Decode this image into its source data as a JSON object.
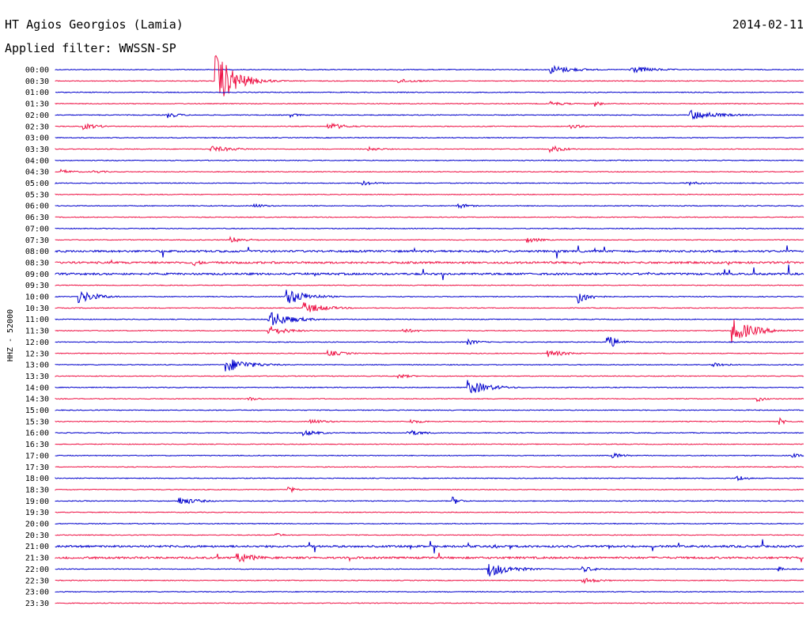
{
  "header": {
    "station": "HT Agios Georgios (Lamia)",
    "date": "2014-02-11",
    "filter": "Applied filter: WWSSN-SP"
  },
  "side_label": "HHZ - 52000",
  "chart_data": {
    "type": "line",
    "title": "HT Agios Georgios (Lamia)",
    "subtitle": "Applied filter: WWSSN-SP",
    "ylabel": "HHZ - 52000",
    "xlabel": "",
    "grid": false,
    "colors": [
      "#0000cc",
      "#ee1144"
    ],
    "row_labels": [
      "00:00",
      "00:30",
      "01:00",
      "01:30",
      "02:00",
      "02:30",
      "03:00",
      "03:30",
      "04:00",
      "04:30",
      "05:00",
      "05:30",
      "06:00",
      "06:30",
      "07:00",
      "07:30",
      "08:00",
      "08:30",
      "09:00",
      "09:30",
      "10:00",
      "10:30",
      "11:00",
      "11:30",
      "12:00",
      "12:30",
      "13:00",
      "13:30",
      "14:00",
      "14:30",
      "15:00",
      "15:30",
      "16:00",
      "16:30",
      "17:00",
      "17:30",
      "18:00",
      "18:30",
      "19:00",
      "19:30",
      "20:00",
      "20:30",
      "21:00",
      "21:30",
      "22:00",
      "22:30",
      "23:00",
      "23:30"
    ],
    "row_minutes": 30,
    "events": [
      {
        "row": 0,
        "minute": 19.8,
        "amp": 6,
        "dur": 1.6
      },
      {
        "row": 0,
        "minute": 23.0,
        "amp": 5,
        "dur": 1.6
      },
      {
        "row": 1,
        "minute": 6.4,
        "amp": 38,
        "dur": 1.2
      },
      {
        "row": 1,
        "minute": 13.7,
        "amp": 3,
        "dur": 1.5
      },
      {
        "row": 3,
        "minute": 19.8,
        "amp": 3,
        "dur": 1.2
      },
      {
        "row": 3,
        "minute": 21.6,
        "amp": 5,
        "dur": 0.4
      },
      {
        "row": 4,
        "minute": 4.5,
        "amp": 4,
        "dur": 0.8
      },
      {
        "row": 4,
        "minute": 9.4,
        "amp": 3,
        "dur": 0.6
      },
      {
        "row": 4,
        "minute": 25.4,
        "amp": 7,
        "dur": 1.8
      },
      {
        "row": 5,
        "minute": 1.1,
        "amp": 4,
        "dur": 1.2
      },
      {
        "row": 5,
        "minute": 10.9,
        "amp": 5,
        "dur": 1.2
      },
      {
        "row": 5,
        "minute": 20.6,
        "amp": 3,
        "dur": 1.0
      },
      {
        "row": 7,
        "minute": 6.2,
        "amp": 4,
        "dur": 1.8
      },
      {
        "row": 7,
        "minute": 12.5,
        "amp": 3,
        "dur": 1.0
      },
      {
        "row": 7,
        "minute": 19.8,
        "amp": 5,
        "dur": 1.0
      },
      {
        "row": 9,
        "minute": 0.2,
        "amp": 3,
        "dur": 1.0
      },
      {
        "row": 9,
        "minute": 1.5,
        "amp": 2,
        "dur": 1.2
      },
      {
        "row": 10,
        "minute": 12.3,
        "amp": 3,
        "dur": 1.0
      },
      {
        "row": 10,
        "minute": 25.3,
        "amp": 3,
        "dur": 1.0
      },
      {
        "row": 12,
        "minute": 7.9,
        "amp": 3,
        "dur": 1.0
      },
      {
        "row": 12,
        "minute": 16.1,
        "amp": 4,
        "dur": 0.8
      },
      {
        "row": 15,
        "minute": 7.0,
        "amp": 4,
        "dur": 1.2
      },
      {
        "row": 15,
        "minute": 18.9,
        "amp": 4,
        "dur": 0.9
      },
      {
        "row": 17,
        "minute": 5.5,
        "amp": 5,
        "dur": 0.6
      },
      {
        "row": 20,
        "minute": 0.9,
        "amp": 9,
        "dur": 1.2
      },
      {
        "row": 20,
        "minute": 9.2,
        "amp": 12,
        "dur": 1.3
      },
      {
        "row": 20,
        "minute": 20.9,
        "amp": 10,
        "dur": 0.8
      },
      {
        "row": 21,
        "minute": 9.9,
        "amp": 8,
        "dur": 1.4
      },
      {
        "row": 22,
        "minute": 8.5,
        "amp": 12,
        "dur": 1.4
      },
      {
        "row": 23,
        "minute": 8.5,
        "amp": 7,
        "dur": 1.2
      },
      {
        "row": 23,
        "minute": 13.9,
        "amp": 3,
        "dur": 1.2
      },
      {
        "row": 23,
        "minute": 27.1,
        "amp": 16,
        "dur": 1.4
      },
      {
        "row": 24,
        "minute": 16.5,
        "amp": 4,
        "dur": 0.8
      },
      {
        "row": 24,
        "minute": 22.1,
        "amp": 12,
        "dur": 0.6
      },
      {
        "row": 25,
        "minute": 10.9,
        "amp": 4,
        "dur": 1.2
      },
      {
        "row": 25,
        "minute": 19.7,
        "amp": 5,
        "dur": 1.2
      },
      {
        "row": 26,
        "minute": 6.8,
        "amp": 10,
        "dur": 1.5
      },
      {
        "row": 26,
        "minute": 26.3,
        "amp": 4,
        "dur": 1.0
      },
      {
        "row": 27,
        "minute": 13.7,
        "amp": 3,
        "dur": 1.0
      },
      {
        "row": 28,
        "minute": 16.5,
        "amp": 10,
        "dur": 1.4
      },
      {
        "row": 29,
        "minute": 7.7,
        "amp": 3,
        "dur": 0.8
      },
      {
        "row": 29,
        "minute": 28.1,
        "amp": 5,
        "dur": 0.5
      },
      {
        "row": 31,
        "minute": 10.2,
        "amp": 3,
        "dur": 1.4
      },
      {
        "row": 31,
        "minute": 14.2,
        "amp": 3,
        "dur": 1.0
      },
      {
        "row": 31,
        "minute": 29.0,
        "amp": 5,
        "dur": 0.5
      },
      {
        "row": 32,
        "minute": 9.9,
        "amp": 4,
        "dur": 1.2
      },
      {
        "row": 32,
        "minute": 14.1,
        "amp": 4,
        "dur": 1.2
      },
      {
        "row": 34,
        "minute": 22.3,
        "amp": 4,
        "dur": 0.8
      },
      {
        "row": 34,
        "minute": 29.5,
        "amp": 3,
        "dur": 0.8
      },
      {
        "row": 36,
        "minute": 27.3,
        "amp": 5,
        "dur": 0.6
      },
      {
        "row": 37,
        "minute": 9.3,
        "amp": 5,
        "dur": 0.5
      },
      {
        "row": 38,
        "minute": 4.9,
        "amp": 6,
        "dur": 1.2
      },
      {
        "row": 38,
        "minute": 15.9,
        "amp": 6,
        "dur": 0.5
      },
      {
        "row": 41,
        "minute": 8.8,
        "amp": 3,
        "dur": 0.6
      },
      {
        "row": 42,
        "minute": 17.5,
        "amp": 3,
        "dur": 1.0
      },
      {
        "row": 43,
        "minute": 7.2,
        "amp": 8,
        "dur": 1.2
      },
      {
        "row": 44,
        "minute": 17.3,
        "amp": 11,
        "dur": 1.4
      },
      {
        "row": 44,
        "minute": 21.1,
        "amp": 4,
        "dur": 1.0
      },
      {
        "row": 44,
        "minute": 28.9,
        "amp": 5,
        "dur": 0.4
      },
      {
        "row": 45,
        "minute": 21.1,
        "amp": 4,
        "dur": 1.2
      }
    ],
    "noisy_rows": [
      16,
      17,
      18,
      42,
      43
    ]
  }
}
